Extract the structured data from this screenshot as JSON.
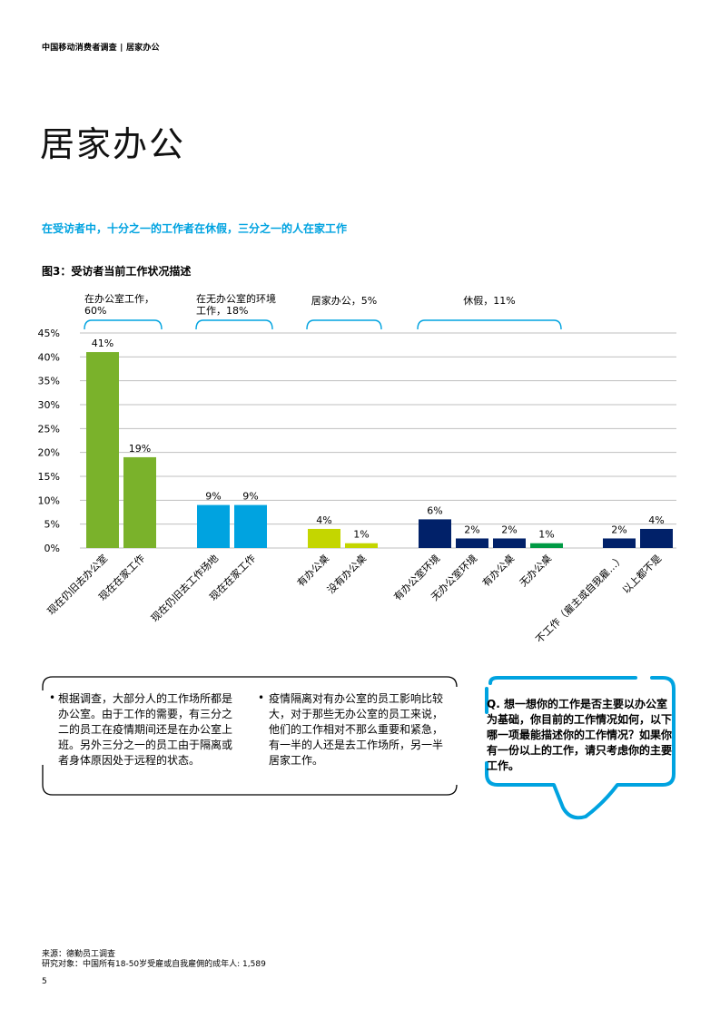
{
  "header": {
    "text": "中国移动消费者调查 | 居家办公"
  },
  "page_title": "居家办公",
  "subtitle": "在受访者中，十分之一的工作者在休假，三分之一的人在家工作",
  "figure_title": "图3：受访者当前工作状况描述",
  "chart_data": {
    "type": "bar",
    "ylim": [
      0,
      45
    ],
    "yticks": [
      "0%",
      "5%",
      "10%",
      "15%",
      "20%",
      "25%",
      "30%",
      "35%",
      "40%",
      "45%"
    ],
    "grid": true,
    "groups": [
      {
        "label_lines": [
          "在办公室工作，",
          "60%"
        ],
        "bars": [
          {
            "category": "现在仍旧去办公室",
            "value": 41,
            "label": "41%",
            "color": "#7ab22b"
          },
          {
            "category": "现在在家工作",
            "value": 19,
            "label": "19%",
            "color": "#7ab22b"
          }
        ]
      },
      {
        "label_lines": [
          "在无办公室的环境",
          "工作，18%"
        ],
        "bars": [
          {
            "category": "现在仍旧去工作场地",
            "value": 9,
            "label": "9%",
            "color": "#00a3e0"
          },
          {
            "category": "现在在家工作",
            "value": 9,
            "label": "9%",
            "color": "#00a3e0"
          }
        ]
      },
      {
        "label_lines": [
          "居家办公，5%"
        ],
        "bars": [
          {
            "category": "有办公桌",
            "value": 4,
            "label": "4%",
            "color": "#c4d600"
          },
          {
            "category": "没有办公桌",
            "value": 1,
            "label": "1%",
            "color": "#c4d600"
          }
        ]
      },
      {
        "label_lines": [
          "休假，11%"
        ],
        "bars": [
          {
            "category": "有办公室环境",
            "value": 6,
            "label": "6%",
            "color": "#012169"
          },
          {
            "category": "无办公室环境",
            "value": 2,
            "label": "2%",
            "color": "#012169"
          },
          {
            "category": "有办公桌",
            "value": 2,
            "label": "2%",
            "color": "#012169"
          },
          {
            "category": "无办公桌",
            "value": 1,
            "label": "1%",
            "color": "#009a44"
          }
        ]
      },
      {
        "label_lines": [],
        "bars": [
          {
            "category": "不工作（雇主或自我雇…）",
            "value": 2,
            "label": "2%",
            "color": "#012169"
          },
          {
            "category": "以上都不是",
            "value": 4,
            "label": "4%",
            "color": "#012169"
          }
        ]
      }
    ]
  },
  "notes": {
    "left": "根据调查，大部分人的工作场所都是办公室。由于工作的需要，有三分之二的员工在疫情期间还是在办公室上班。另外三分之一的员工由于隔离或者身体原因处于远程的状态。",
    "right": "疫情隔离对有办公室的员工影响比较大，对于那些无办公室的员工来说，他们的工作相对不那么重要和紧急，有一半的人还是去工作场所，另一半居家工作。",
    "bullet": "•"
  },
  "question": "Q. 想一想你的工作是否主要以办公室为基础，你目前的工作情况如何，以下哪一项最能描述你的工作情况？如果你有一份以上的工作，请只考虑你的主要工作。",
  "source": {
    "line1": "来源：德勤员工调查",
    "line2": "研究对象：中国所有18-50岁受雇或自我雇佣的成年人: 1,589"
  },
  "page_number": "5",
  "colors": {
    "accent": "#00a3e0",
    "grid": "#bfbfbf"
  }
}
